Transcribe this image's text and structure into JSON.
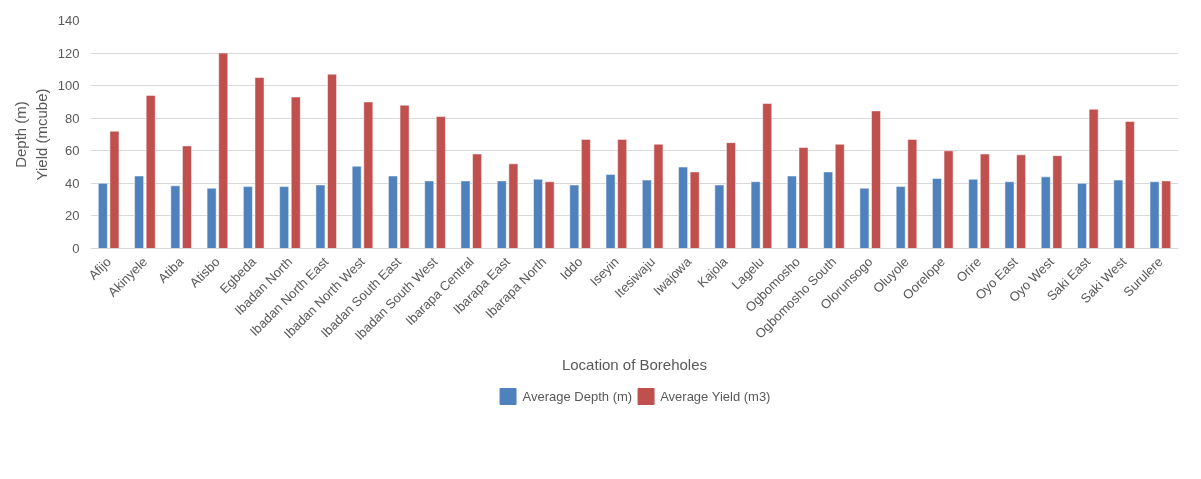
{
  "chart_data": {
    "type": "bar",
    "xlabel": "Location of Boreholes",
    "ylabel": "Depth (m)\nYield (mcube)",
    "categories": [
      "Afijo",
      "Akinyele",
      "Atiba",
      "Atisbo",
      "Egbeda",
      "Ibadan North",
      "Ibadan North East",
      "Ibadan North West",
      "Ibadan South East",
      "Ibadan South West",
      "Ibarapa Central",
      "Ibarapa East",
      "Ibarapa North",
      "Iddo",
      "Iseyin",
      "Itesiwaju",
      "Iwajowa",
      "Kajola",
      "Lagelu",
      "Ogbomosho",
      "Ogbomosho South",
      "Olorunsogo",
      "Oluyole",
      "Oorelope",
      "Orire",
      "Oyo East",
      "Oyo West",
      "Saki East",
      "Saki West",
      "Surulere"
    ],
    "series": [
      {
        "name": "Average Depth (m)",
        "color": "#4f81bd",
        "values": [
          40,
          44.5,
          38.5,
          37,
          38,
          38,
          39,
          50.5,
          44.5,
          41.5,
          41.5,
          41.5,
          42.5,
          39,
          45.5,
          42,
          50,
          39,
          41,
          44.5,
          47,
          37,
          38,
          43,
          42.5,
          41,
          44,
          40,
          42,
          41
        ]
      },
      {
        "name": "Average Yield (m3)",
        "color": "#c0504d",
        "values": [
          72,
          94,
          63,
          120,
          105,
          93,
          107,
          90,
          88,
          81,
          58,
          52,
          41,
          67,
          67,
          64,
          47,
          65,
          89,
          62,
          64,
          84.5,
          67,
          60,
          58,
          57.5,
          57,
          85.5,
          78,
          41.5
        ]
      }
    ],
    "ylim": [
      0,
      140
    ],
    "yticks": [
      0,
      20,
      40,
      60,
      80,
      100,
      120,
      140
    ],
    "grid": "y",
    "legend": "bottom"
  }
}
